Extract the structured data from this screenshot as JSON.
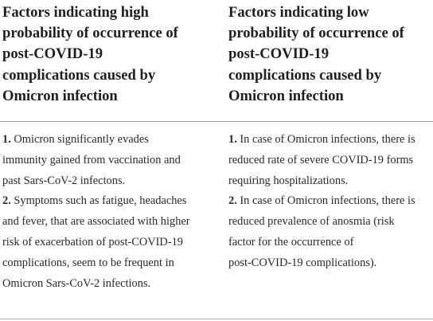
{
  "table": {
    "columns": [
      {
        "header_lines": [
          "Factors indicating high",
          "probability of occurrence of",
          "post-COVID-19",
          "complications caused by",
          "Omicron infection"
        ],
        "body_lines": [
          {
            "num": "1.",
            "text": " Omicron significantly evades"
          },
          {
            "num": "",
            "text": "immunity gained from vaccination and"
          },
          {
            "num": "",
            "text": "past Sars-CoV-2 infectons."
          },
          {
            "num": "2.",
            "text": " Symptoms such as fatigue, headaches"
          },
          {
            "num": "",
            "text": "and fever, that are associated with higher"
          },
          {
            "num": "",
            "text": "risk of exacerbation of post-COVID-19"
          },
          {
            "num": "",
            "text": "complications, seem to be frequent in"
          },
          {
            "num": "",
            "text": "Omicron Sars-CoV-2 infections."
          }
        ]
      },
      {
        "header_lines": [
          "Factors indicating low",
          "probability of occurrence of",
          "post-COVID-19",
          "complications caused by",
          "Omicron infection"
        ],
        "body_lines": [
          {
            "num": "1.",
            "text": " In case of Omicron infections, there is"
          },
          {
            "num": "",
            "text": "reduced rate of severe COVID-19 forms"
          },
          {
            "num": "",
            "text": "requiring hospitalizations."
          },
          {
            "num": "2.",
            "text": " In case of Omicron infections, there is"
          },
          {
            "num": "",
            "text": "reduced prevalence of anosmia (risk"
          },
          {
            "num": "",
            "text": "factor for the occurrence of"
          },
          {
            "num": "",
            "text": "post-COVID-19 complications)."
          }
        ]
      }
    ]
  }
}
